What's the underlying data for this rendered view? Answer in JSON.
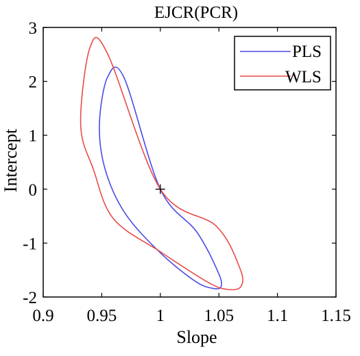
{
  "chart_data": {
    "type": "line",
    "title": "EJCR(PCR)",
    "xlabel": "Slope",
    "ylabel": "Intercept",
    "xlim": [
      0.9,
      1.15
    ],
    "ylim": [
      -2,
      3
    ],
    "xticks": [
      "0.9",
      "0.95",
      "1",
      "1.05",
      "1.1",
      "1.15"
    ],
    "yticks": [
      "-2",
      "-1",
      "0",
      "1",
      "2",
      "3"
    ],
    "grid": false,
    "legend_position": "top-right",
    "center_marker": {
      "x": 1.0,
      "y": 0.0,
      "symbol": "+"
    },
    "series": [
      {
        "name": "PLS",
        "color": "#4a4ae8",
        "x": [
          1.0,
          1.031,
          1.049,
          1.052,
          1.045,
          1.03,
          1.0,
          0.97,
          0.953,
          0.948,
          0.955,
          0.969,
          1.0
        ],
        "y": [
          0.0,
          -0.79,
          -1.52,
          -1.8,
          -1.84,
          -1.71,
          -1.18,
          -0.45,
          0.36,
          1.2,
          2.08,
          2.07,
          0.0
        ]
      },
      {
        "name": "WLS",
        "color": "#e84a4a",
        "x": [
          1.0,
          1.048,
          1.068,
          1.069,
          1.058,
          1.041,
          1.0,
          0.96,
          0.943,
          0.932,
          0.94,
          0.955,
          1.0
        ],
        "y": [
          0.0,
          -0.69,
          -1.47,
          -1.8,
          -1.86,
          -1.73,
          -1.16,
          -0.55,
          0.36,
          1.2,
          2.63,
          2.51,
          0.0
        ]
      }
    ],
    "series_colors": {
      "PLS": "#4a4ae8",
      "WLS": "#e84a4a"
    }
  }
}
